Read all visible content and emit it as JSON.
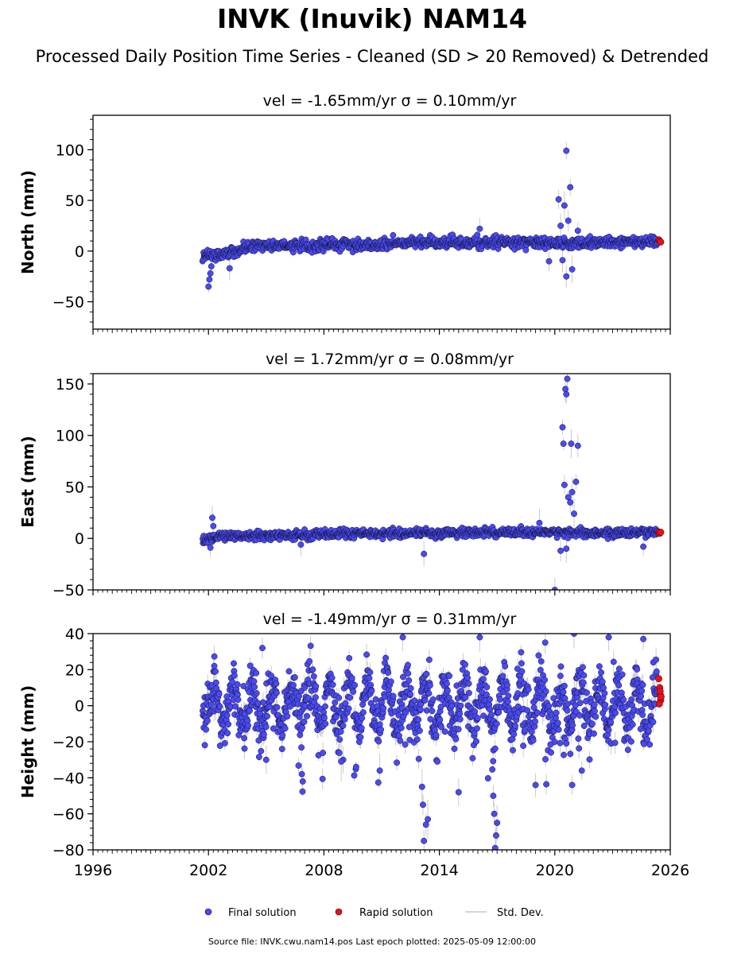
{
  "figure": {
    "title": "INVK (Inuvik) NAM14",
    "subtitle": "Processed Daily Position Time Series - Cleaned (SD > 20 Removed) & Detrended",
    "footer": "Source file: INVK.cwu.nam14.pos  Last epoch plotted: 2025-05-09 12:00:00"
  },
  "legend": {
    "final_label": "Final solution",
    "rapid_label": "Rapid solution",
    "sd_label": "Std. Dev."
  },
  "colors": {
    "final_fill": "#4a4af2",
    "final_edge": "#111133",
    "rapid_fill": "#e8101a",
    "errorbar": "#b8b8b8"
  },
  "chart_data": [
    {
      "type": "scatter",
      "title": "vel = -1.65mm/yr   σ = 0.10mm/yr",
      "ylabel": "North (mm)",
      "xlim": [
        1996,
        2026
      ],
      "ylim": [
        -77,
        134
      ],
      "yticks": [
        -50,
        0,
        50,
        100
      ],
      "data_start": 2001.7,
      "data_end": 2025.35,
      "series": [
        {
          "name": "Final solution",
          "trend": [
            [
              2001.7,
              -3
            ],
            [
              2002.4,
              -4
            ],
            [
              2003.5,
              1
            ],
            [
              2005.0,
              6
            ],
            [
              2007.0,
              5
            ],
            [
              2009.0,
              7
            ],
            [
              2011.0,
              6
            ],
            [
              2013.0,
              9
            ],
            [
              2015.0,
              8
            ],
            [
              2017.0,
              9
            ],
            [
              2019.0,
              8
            ],
            [
              2021.0,
              8
            ],
            [
              2023.0,
              9
            ],
            [
              2025.35,
              10
            ]
          ],
          "scatter_sd": 2.5,
          "outliers": [
            [
              2002.0,
              -35
            ],
            [
              2002.05,
              -28
            ],
            [
              2002.1,
              -22
            ],
            [
              2002.15,
              -15
            ],
            [
              2003.1,
              -17
            ],
            [
              2020.2,
              51
            ],
            [
              2020.5,
              45
            ],
            [
              2020.6,
              99
            ],
            [
              2020.8,
              63
            ],
            [
              2020.7,
              30
            ],
            [
              2020.9,
              -18
            ],
            [
              2020.4,
              -9
            ],
            [
              2020.6,
              -25
            ],
            [
              2019.7,
              -10
            ],
            [
              2021.2,
              20
            ],
            [
              2020.3,
              25
            ],
            [
              2016.1,
              22
            ]
          ]
        },
        {
          "name": "Rapid solution",
          "points": [
            [
              2025.4,
              11
            ],
            [
              2025.45,
              10
            ],
            [
              2025.5,
              9
            ]
          ]
        }
      ]
    },
    {
      "type": "scatter",
      "title": "vel = 1.72mm/yr   σ = 0.08mm/yr",
      "ylabel": "East (mm)",
      "xlim": [
        1996,
        2026
      ],
      "ylim": [
        -50,
        160
      ],
      "yticks": [
        -50,
        0,
        50,
        100,
        150
      ],
      "data_start": 2001.7,
      "data_end": 2025.35,
      "series": [
        {
          "name": "Final solution",
          "trend": [
            [
              2001.7,
              -2
            ],
            [
              2002.5,
              2
            ],
            [
              2004.0,
              3
            ],
            [
              2006.0,
              3
            ],
            [
              2008.0,
              4
            ],
            [
              2010.0,
              5
            ],
            [
              2012.0,
              5
            ],
            [
              2014.0,
              5
            ],
            [
              2016.0,
              6
            ],
            [
              2018.0,
              6
            ],
            [
              2020.0,
              6
            ],
            [
              2022.0,
              5
            ],
            [
              2024.0,
              6
            ],
            [
              2025.35,
              6
            ]
          ],
          "scatter_sd": 2.0,
          "outliers": [
            [
              2002.2,
              20
            ],
            [
              2002.25,
              12
            ],
            [
              2002.1,
              -9
            ],
            [
              2013.2,
              -15
            ],
            [
              2006.8,
              -6
            ],
            [
              2020.0,
              -50
            ],
            [
              2020.4,
              108
            ],
            [
              2020.45,
              92
            ],
            [
              2020.55,
              145
            ],
            [
              2020.6,
              140
            ],
            [
              2020.65,
              155
            ],
            [
              2020.85,
              92
            ],
            [
              2021.2,
              90
            ],
            [
              2020.5,
              52
            ],
            [
              2020.7,
              40
            ],
            [
              2020.9,
              45
            ],
            [
              2021.0,
              24
            ],
            [
              2020.8,
              35
            ],
            [
              2021.1,
              55
            ],
            [
              2020.3,
              -12
            ],
            [
              2020.6,
              -10
            ],
            [
              2024.6,
              -8
            ],
            [
              2019.2,
              15
            ]
          ]
        },
        {
          "name": "Rapid solution",
          "points": [
            [
              2025.4,
              6
            ],
            [
              2025.45,
              5
            ],
            [
              2025.5,
              6
            ]
          ]
        }
      ]
    },
    {
      "type": "scatter",
      "title": "vel = -1.49mm/yr   σ = 0.31mm/yr",
      "ylabel": "Height (mm)",
      "xlim": [
        1996,
        2026
      ],
      "ylim": [
        -80,
        40
      ],
      "yticks": [
        -80,
        -60,
        -40,
        -20,
        0,
        20,
        40
      ],
      "data_start": 2001.7,
      "data_end": 2025.35,
      "series": [
        {
          "name": "Final solution",
          "seasonal_amplitude": 12,
          "scatter_sd": 7,
          "dips": [
            [
              2013.2,
              -75
            ],
            [
              2013.3,
              -66
            ],
            [
              2013.15,
              -55
            ],
            [
              2013.1,
              -45
            ],
            [
              2013.4,
              -63
            ],
            [
              2016.9,
              -79
            ],
            [
              2016.95,
              -72
            ],
            [
              2017.0,
              -65
            ],
            [
              2016.85,
              -60
            ],
            [
              2016.8,
              -50
            ],
            [
              2006.9,
              -42
            ],
            [
              2006.85,
              -38
            ],
            [
              2005.0,
              -30
            ],
            [
              2009.0,
              -30
            ],
            [
              2010.9,
              -36
            ],
            [
              2015.0,
              -48
            ],
            [
              2019.0,
              -44
            ],
            [
              2020.9,
              -44
            ],
            [
              2021.4,
              -36
            ],
            [
              2008.9,
              -31
            ]
          ],
          "peaks": [
            [
              2016.1,
              38
            ],
            [
              2021.0,
              40
            ],
            [
              2022.8,
              38
            ],
            [
              2024.6,
              37
            ],
            [
              2002.3,
              22
            ],
            [
              2004.8,
              32
            ],
            [
              2012.1,
              38
            ],
            [
              2019.5,
              35
            ]
          ]
        },
        {
          "name": "Rapid solution",
          "points": [
            [
              2025.4,
              15
            ],
            [
              2025.45,
              10
            ],
            [
              2025.48,
              6
            ],
            [
              2025.5,
              3
            ],
            [
              2025.43,
              1
            ],
            [
              2025.47,
              8
            ],
            [
              2025.52,
              5
            ]
          ]
        }
      ]
    }
  ],
  "x_axis": {
    "ticks": [
      1996,
      2002,
      2008,
      2014,
      2020,
      2026
    ]
  }
}
